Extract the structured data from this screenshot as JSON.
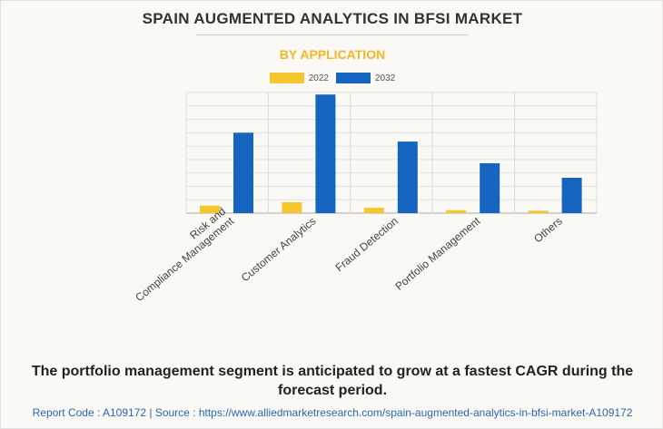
{
  "title": "SPAIN AUGMENTED ANALYTICS IN BFSI MARKET",
  "subtitle": "BY APPLICATION",
  "note": "The portfolio management segment is anticipated to grow at a fastest CAGR during the forecast period.",
  "footer": "Report Code : A109172  |  Source : https://www.alliedmarketresearch.com/spain-augmented-analytics-in-bfsi-market-A109172",
  "chart_data": {
    "type": "bar",
    "title": "SPAIN AUGMENTED ANALYTICS IN BFSI MARKET",
    "subtitle": "BY APPLICATION",
    "categories": [
      [
        "Risk and",
        "Compliance Management"
      ],
      [
        "Customer Analytics"
      ],
      [
        "Fraud Detection"
      ],
      [
        "Portfolio Management"
      ],
      [
        "Others"
      ]
    ],
    "series": [
      {
        "name": "2022",
        "color": "#f5c62d",
        "values": [
          0.56,
          0.81,
          0.4,
          0.22,
          0.18
        ]
      },
      {
        "name": "2032",
        "color": "#1565c0",
        "values": [
          6.0,
          8.85,
          5.34,
          3.72,
          2.64
        ]
      }
    ],
    "ylim": [
      0,
      9
    ],
    "grid": true,
    "legend": "top-center",
    "xlabel": "",
    "ylabel": ""
  }
}
